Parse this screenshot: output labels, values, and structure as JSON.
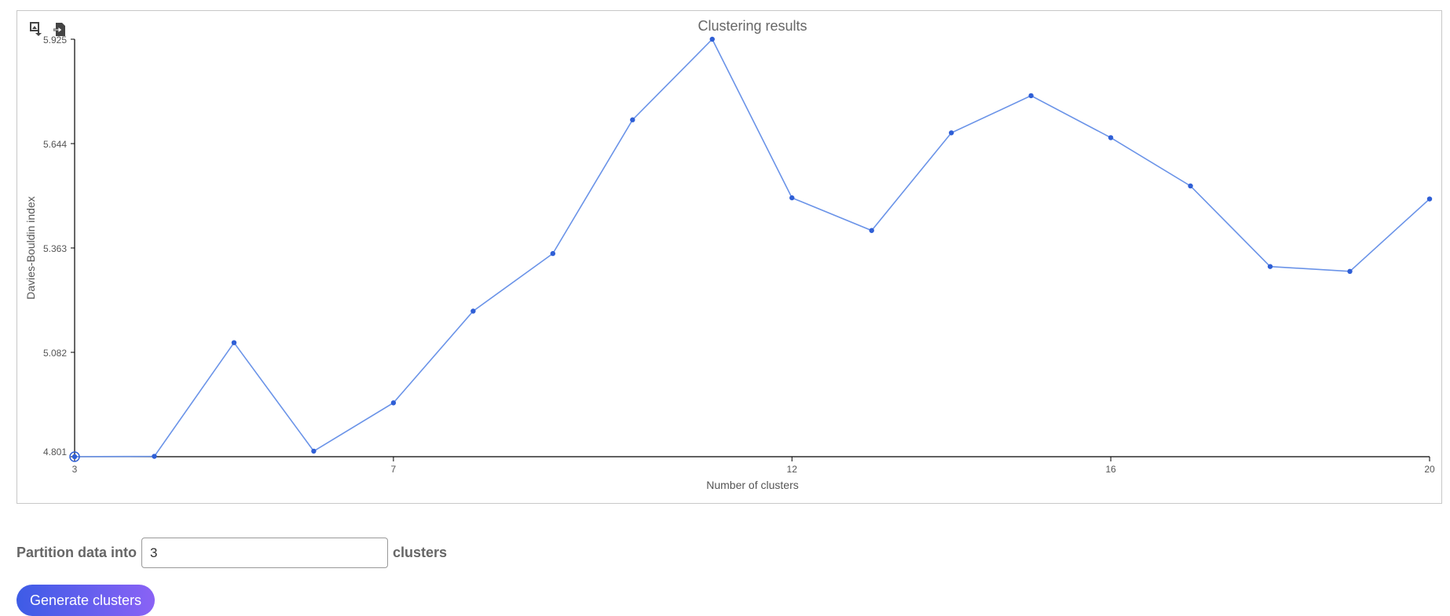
{
  "chart_data": {
    "type": "line",
    "title": "Clustering results",
    "xlabel": "Number of clusters",
    "ylabel": "Davies-Bouldin index",
    "x": [
      3,
      4,
      5,
      6,
      7,
      8,
      9,
      10,
      11,
      12,
      13,
      14,
      15,
      16,
      17,
      18,
      19,
      20
    ],
    "values": [
      4.801,
      4.802,
      5.108,
      4.816,
      4.946,
      5.193,
      5.348,
      5.708,
      5.925,
      5.498,
      5.41,
      5.673,
      5.773,
      5.66,
      5.53,
      5.313,
      5.3,
      5.495
    ],
    "xlim": [
      3,
      20
    ],
    "ylim": [
      4.801,
      5.925
    ],
    "x_ticks": [
      "3",
      "7",
      "12",
      "16",
      "20"
    ],
    "y_ticks": [
      "4.801",
      "5.082",
      "5.363",
      "5.644",
      "5.925"
    ],
    "grid": false,
    "line_color": "#6a93e8",
    "point_color": "#2f5fd6",
    "toolbar_icons": [
      "download-image-icon",
      "export-file-icon"
    ]
  },
  "form": {
    "label_before": "Partition data into",
    "value": "3",
    "label_after": "clusters",
    "button": "Generate clusters"
  }
}
